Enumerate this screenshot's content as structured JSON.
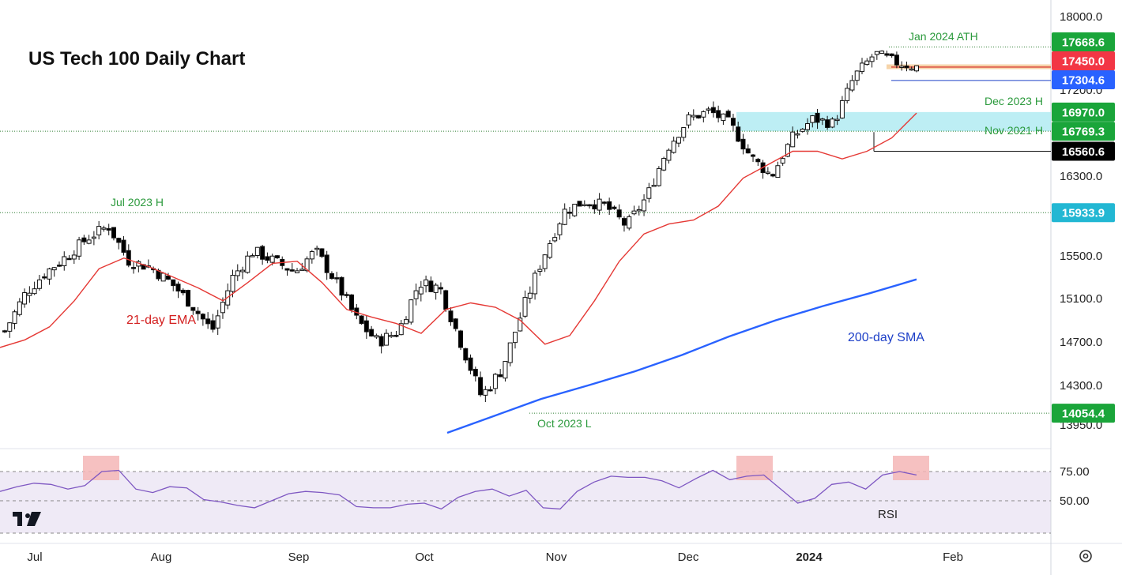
{
  "title": "US Tech 100 Daily Chart",
  "colors": {
    "candle_up_fill": "#ffffff",
    "candle_down_fill": "#000000",
    "ema": "#e53935",
    "sma": "#2962ff",
    "rsi_line": "#7e57c2",
    "rsi_band": "#efeaf6",
    "zone": "#b2ebf2",
    "green_badge": "#1aa53a",
    "red_badge": "#f23645",
    "blue_badge": "#2962ff",
    "cyan_badge": "#22b7d3",
    "black_badge": "#000000",
    "pink_box": "#f4b6b6",
    "level_line_green": "#2e7d32"
  },
  "annotations": {
    "ath": "Jan 2024 ATH",
    "dec_h": "Dec 2023 H",
    "nov_h": "Nov 2021 H",
    "jul_h": "Jul 2023 H",
    "oct_l": "Oct 2023 L",
    "ema": "21-day EMA",
    "sma": "200-day SMA",
    "rsi": "RSI"
  },
  "logo": "tradingview-logo",
  "settings_icon": "gear-icon",
  "chart_data": [
    {
      "type": "candlestick",
      "title": "US Tech 100 Daily Chart",
      "y_ticks": [
        "18000.0",
        "17200.0",
        "16300.0",
        "15500.0",
        "15100.0",
        "14700.0",
        "14300.0",
        "13950.0"
      ],
      "x_ticks": [
        "Jul",
        "Aug",
        "Sep",
        "Oct",
        "Nov",
        "Dec",
        "2024",
        "Feb"
      ],
      "price_badges": [
        {
          "label": "17668.6",
          "value": 17668.6,
          "color": "green"
        },
        {
          "label": "17450.0",
          "value": 17450.0,
          "color": "red"
        },
        {
          "label": "17304.6",
          "value": 17304.6,
          "color": "blue"
        },
        {
          "label": "16970.0",
          "value": 16970.0,
          "color": "green"
        },
        {
          "label": "16769.3",
          "value": 16769.3,
          "color": "green"
        },
        {
          "label": "16560.6",
          "value": 16560.6,
          "color": "black"
        },
        {
          "label": "15933.9",
          "value": 15933.9,
          "color": "cyan"
        },
        {
          "label": "14054.4",
          "value": 14054.4,
          "color": "green"
        }
      ],
      "levels": [
        {
          "name": "Jan 2024 ATH",
          "value": 17668.6
        },
        {
          "name": "Dec 2023 H",
          "value": 16970.0
        },
        {
          "name": "Nov 2021 H",
          "value": 16769.3
        },
        {
          "name": "Jul 2023 H",
          "value": 15933.9
        },
        {
          "name": "Oct 2023 L",
          "value": 14054.4
        }
      ],
      "series": [
        {
          "name": "21-day EMA"
        },
        {
          "name": "200-day SMA"
        }
      ],
      "ema_values": [
        14650,
        14720,
        14840,
        15080,
        15380,
        15480,
        15400,
        15300,
        15200,
        15080,
        15250,
        15430,
        15450,
        15250,
        15000,
        14930,
        14870,
        14780,
        15000,
        15060,
        15020,
        14900,
        14680,
        14760,
        15080,
        15450,
        15720,
        15820,
        15860,
        16000,
        16280,
        16420,
        16560,
        16560,
        16480,
        16560,
        16700,
        16960
      ],
      "sma_values": [
        13880,
        14030,
        14180,
        14300,
        14430,
        14580,
        14750,
        14900,
        15030,
        15150,
        15280
      ],
      "close_values": [
        14800,
        15150,
        15350,
        15500,
        15680,
        15800,
        15450,
        15400,
        15250,
        15050,
        14800,
        15300,
        15550,
        15450,
        15350,
        15550,
        15250,
        14900,
        14700,
        14800,
        15250,
        15200,
        14700,
        14200,
        14450,
        15000,
        15500,
        15950,
        16050,
        16000,
        15800,
        16100,
        16600,
        16900,
        16980,
        16850,
        16500,
        16300,
        16700,
        16900,
        16850,
        17350,
        17600,
        17500,
        17450
      ]
    },
    {
      "type": "line",
      "title": "RSI",
      "y_ticks": [
        "75.00",
        "50.00"
      ],
      "ylim": [
        40,
        80
      ],
      "values": [
        58,
        62,
        65,
        64,
        60,
        63,
        75,
        76,
        60,
        57,
        62,
        61,
        51,
        49,
        46,
        44,
        50,
        56,
        58,
        57,
        55,
        45,
        44,
        44,
        47,
        48,
        43,
        53,
        58,
        60,
        54,
        59,
        44,
        43,
        58,
        66,
        71,
        70,
        70,
        67,
        61,
        69,
        76,
        68,
        71,
        72,
        60,
        48,
        52,
        64,
        66,
        60,
        72,
        75,
        72
      ]
    }
  ]
}
